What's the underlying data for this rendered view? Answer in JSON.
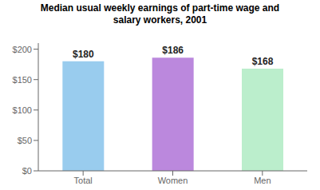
{
  "chart_data": {
    "type": "bar",
    "title": "Median usual weekly earnings of part-time wage and\nsalary workers, 2001",
    "categories": [
      "Total",
      "Women",
      "Men"
    ],
    "values": [
      180,
      186,
      168
    ],
    "value_labels": [
      "$180",
      "$186",
      "$168"
    ],
    "data_labels": true,
    "colors": [
      "#99ccee",
      "#bb88dd",
      "#bbeecc"
    ],
    "ylim": [
      0,
      210
    ],
    "yticks": [
      {
        "value": 0,
        "label": "$0"
      },
      {
        "value": 50,
        "label": "$50"
      },
      {
        "value": 100,
        "label": "$100"
      },
      {
        "value": 150,
        "label": "$150"
      },
      {
        "value": 200,
        "label": "$200"
      }
    ],
    "grid": false
  }
}
